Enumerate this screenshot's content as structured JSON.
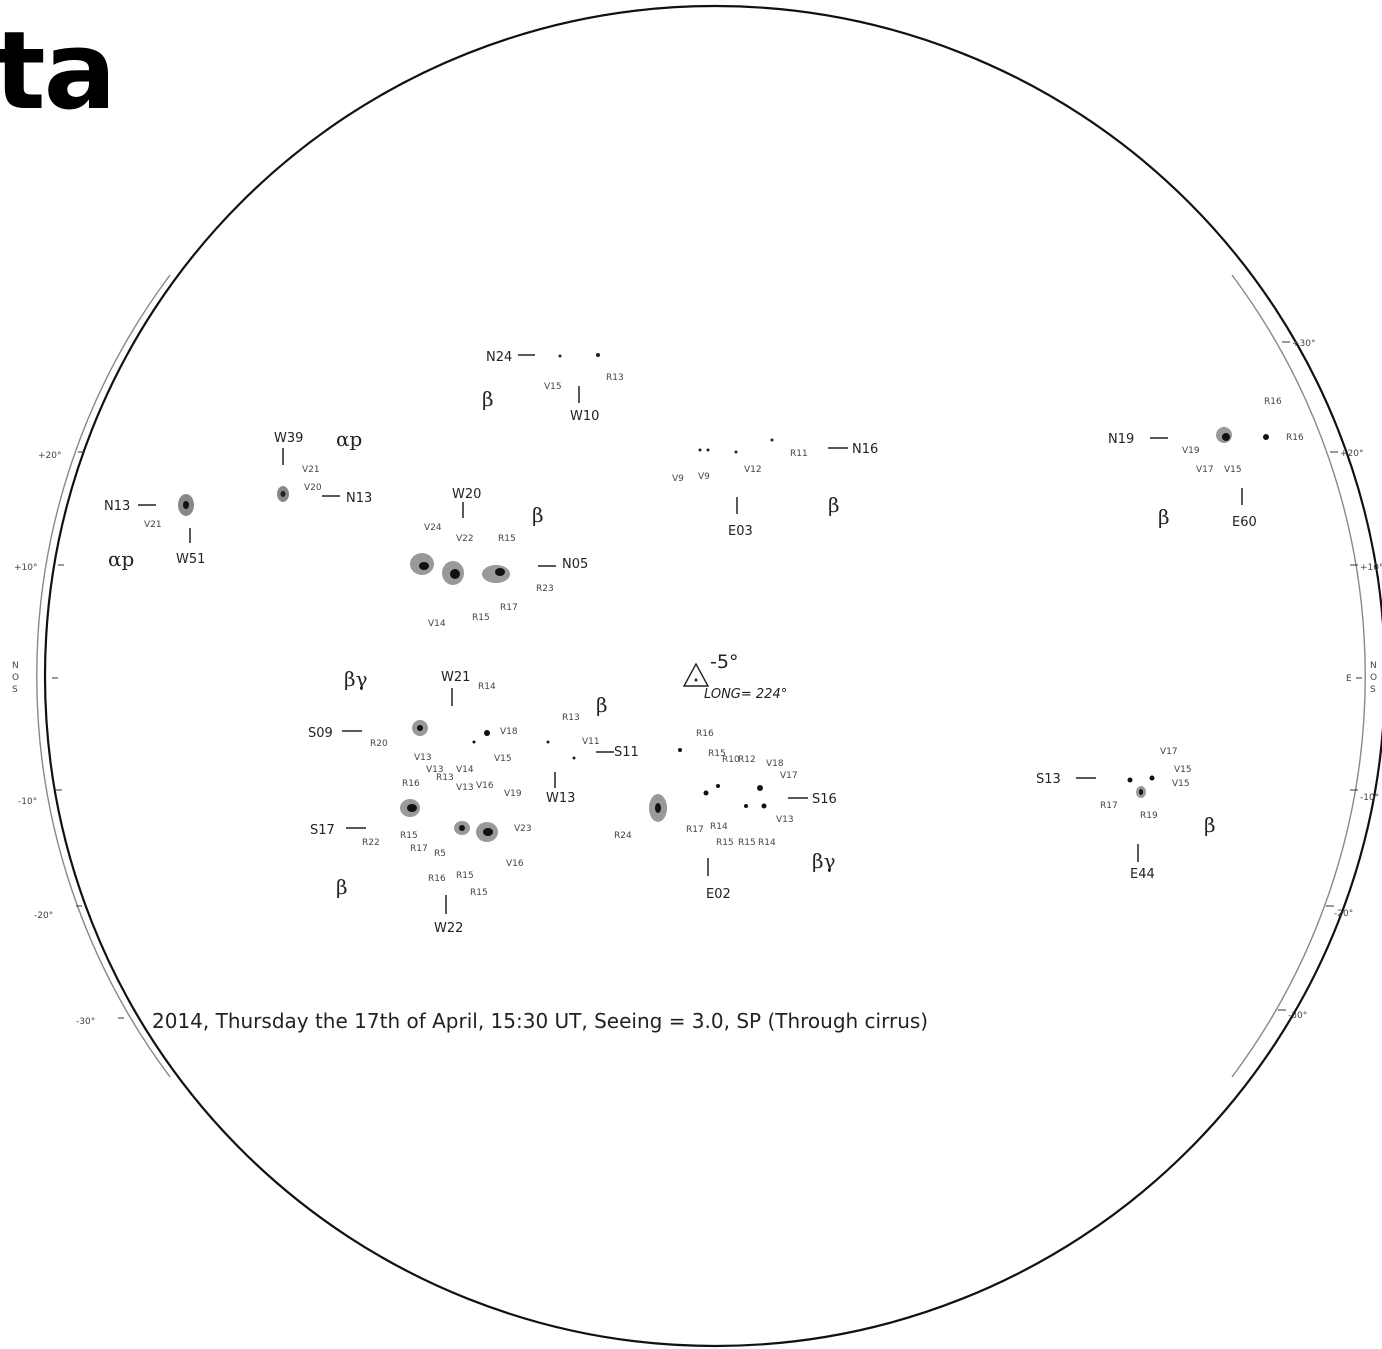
{
  "heading": "ta",
  "caption": "2014, Thursday the 17th of April, 15:30 UT, Seeing = 3.0, SP (Through cirrus)",
  "heliographic": {
    "b0": "-5°",
    "long": "LONG= 224°"
  },
  "scale_left": [
    "+20°",
    "+10°",
    "0",
    "-10°",
    "-20°",
    "-30°"
  ],
  "scale_right": [
    "+30°",
    "+20°",
    "+10°",
    "-10°",
    "-20°",
    "-30°"
  ],
  "left_axis_letters": [
    "N",
    "O",
    "S"
  ],
  "right_axis": {
    "e": "E",
    "letters": [
      "N",
      "O",
      "S"
    ]
  },
  "groups": [
    {
      "pos": "N13",
      "lon": "W51",
      "class": "αp",
      "labels": [
        "V21"
      ]
    },
    {
      "pos": "N13",
      "lon": "W39",
      "class": "αp",
      "labels": [
        "V21",
        "V20"
      ]
    },
    {
      "pos": "N24",
      "lon": "W10",
      "class": "β",
      "labels": [
        "V15",
        "R13"
      ]
    },
    {
      "pos": "N05",
      "lon": "W20",
      "class": "β",
      "labels": [
        "V24",
        "V22",
        "R15",
        "R23",
        "R17",
        "R15",
        "V14"
      ]
    },
    {
      "pos": "N16",
      "lon": "E03",
      "class": "β",
      "labels": [
        "V9",
        "V9",
        "V12",
        "R11"
      ]
    },
    {
      "pos": "N19",
      "lon": "E60",
      "class": "β",
      "labels": [
        "V19",
        "V17",
        "V15",
        "R16",
        "R16"
      ]
    },
    {
      "pos": "S09",
      "lon": "W21",
      "class": "βγ",
      "labels": [
        "R14",
        "V18",
        "V15",
        "R20",
        "V13"
      ]
    },
    {
      "pos": "S11",
      "lon": "W13",
      "class": "β",
      "labels": [
        "R13",
        "V11"
      ]
    },
    {
      "pos": "S17",
      "lon": "W22",
      "class": "β",
      "labels": [
        "R16",
        "V13",
        "V14",
        "V13",
        "V16",
        "V19",
        "R13",
        "R15",
        "V23",
        "R22",
        "R17",
        "R5",
        "R16",
        "R15",
        "R15",
        "V16"
      ]
    },
    {
      "pos": "S16",
      "lon": "E02",
      "class": "βγ",
      "labels": [
        "R16",
        "R15",
        "R10",
        "R12",
        "V18",
        "V17",
        "R17",
        "R14",
        "R15",
        "R15",
        "R14",
        "V13",
        "R24"
      ]
    },
    {
      "pos": "S13",
      "lon": "E44",
      "class": "β",
      "labels": [
        "V17",
        "V15",
        "V15",
        "R17",
        "R19"
      ]
    }
  ]
}
